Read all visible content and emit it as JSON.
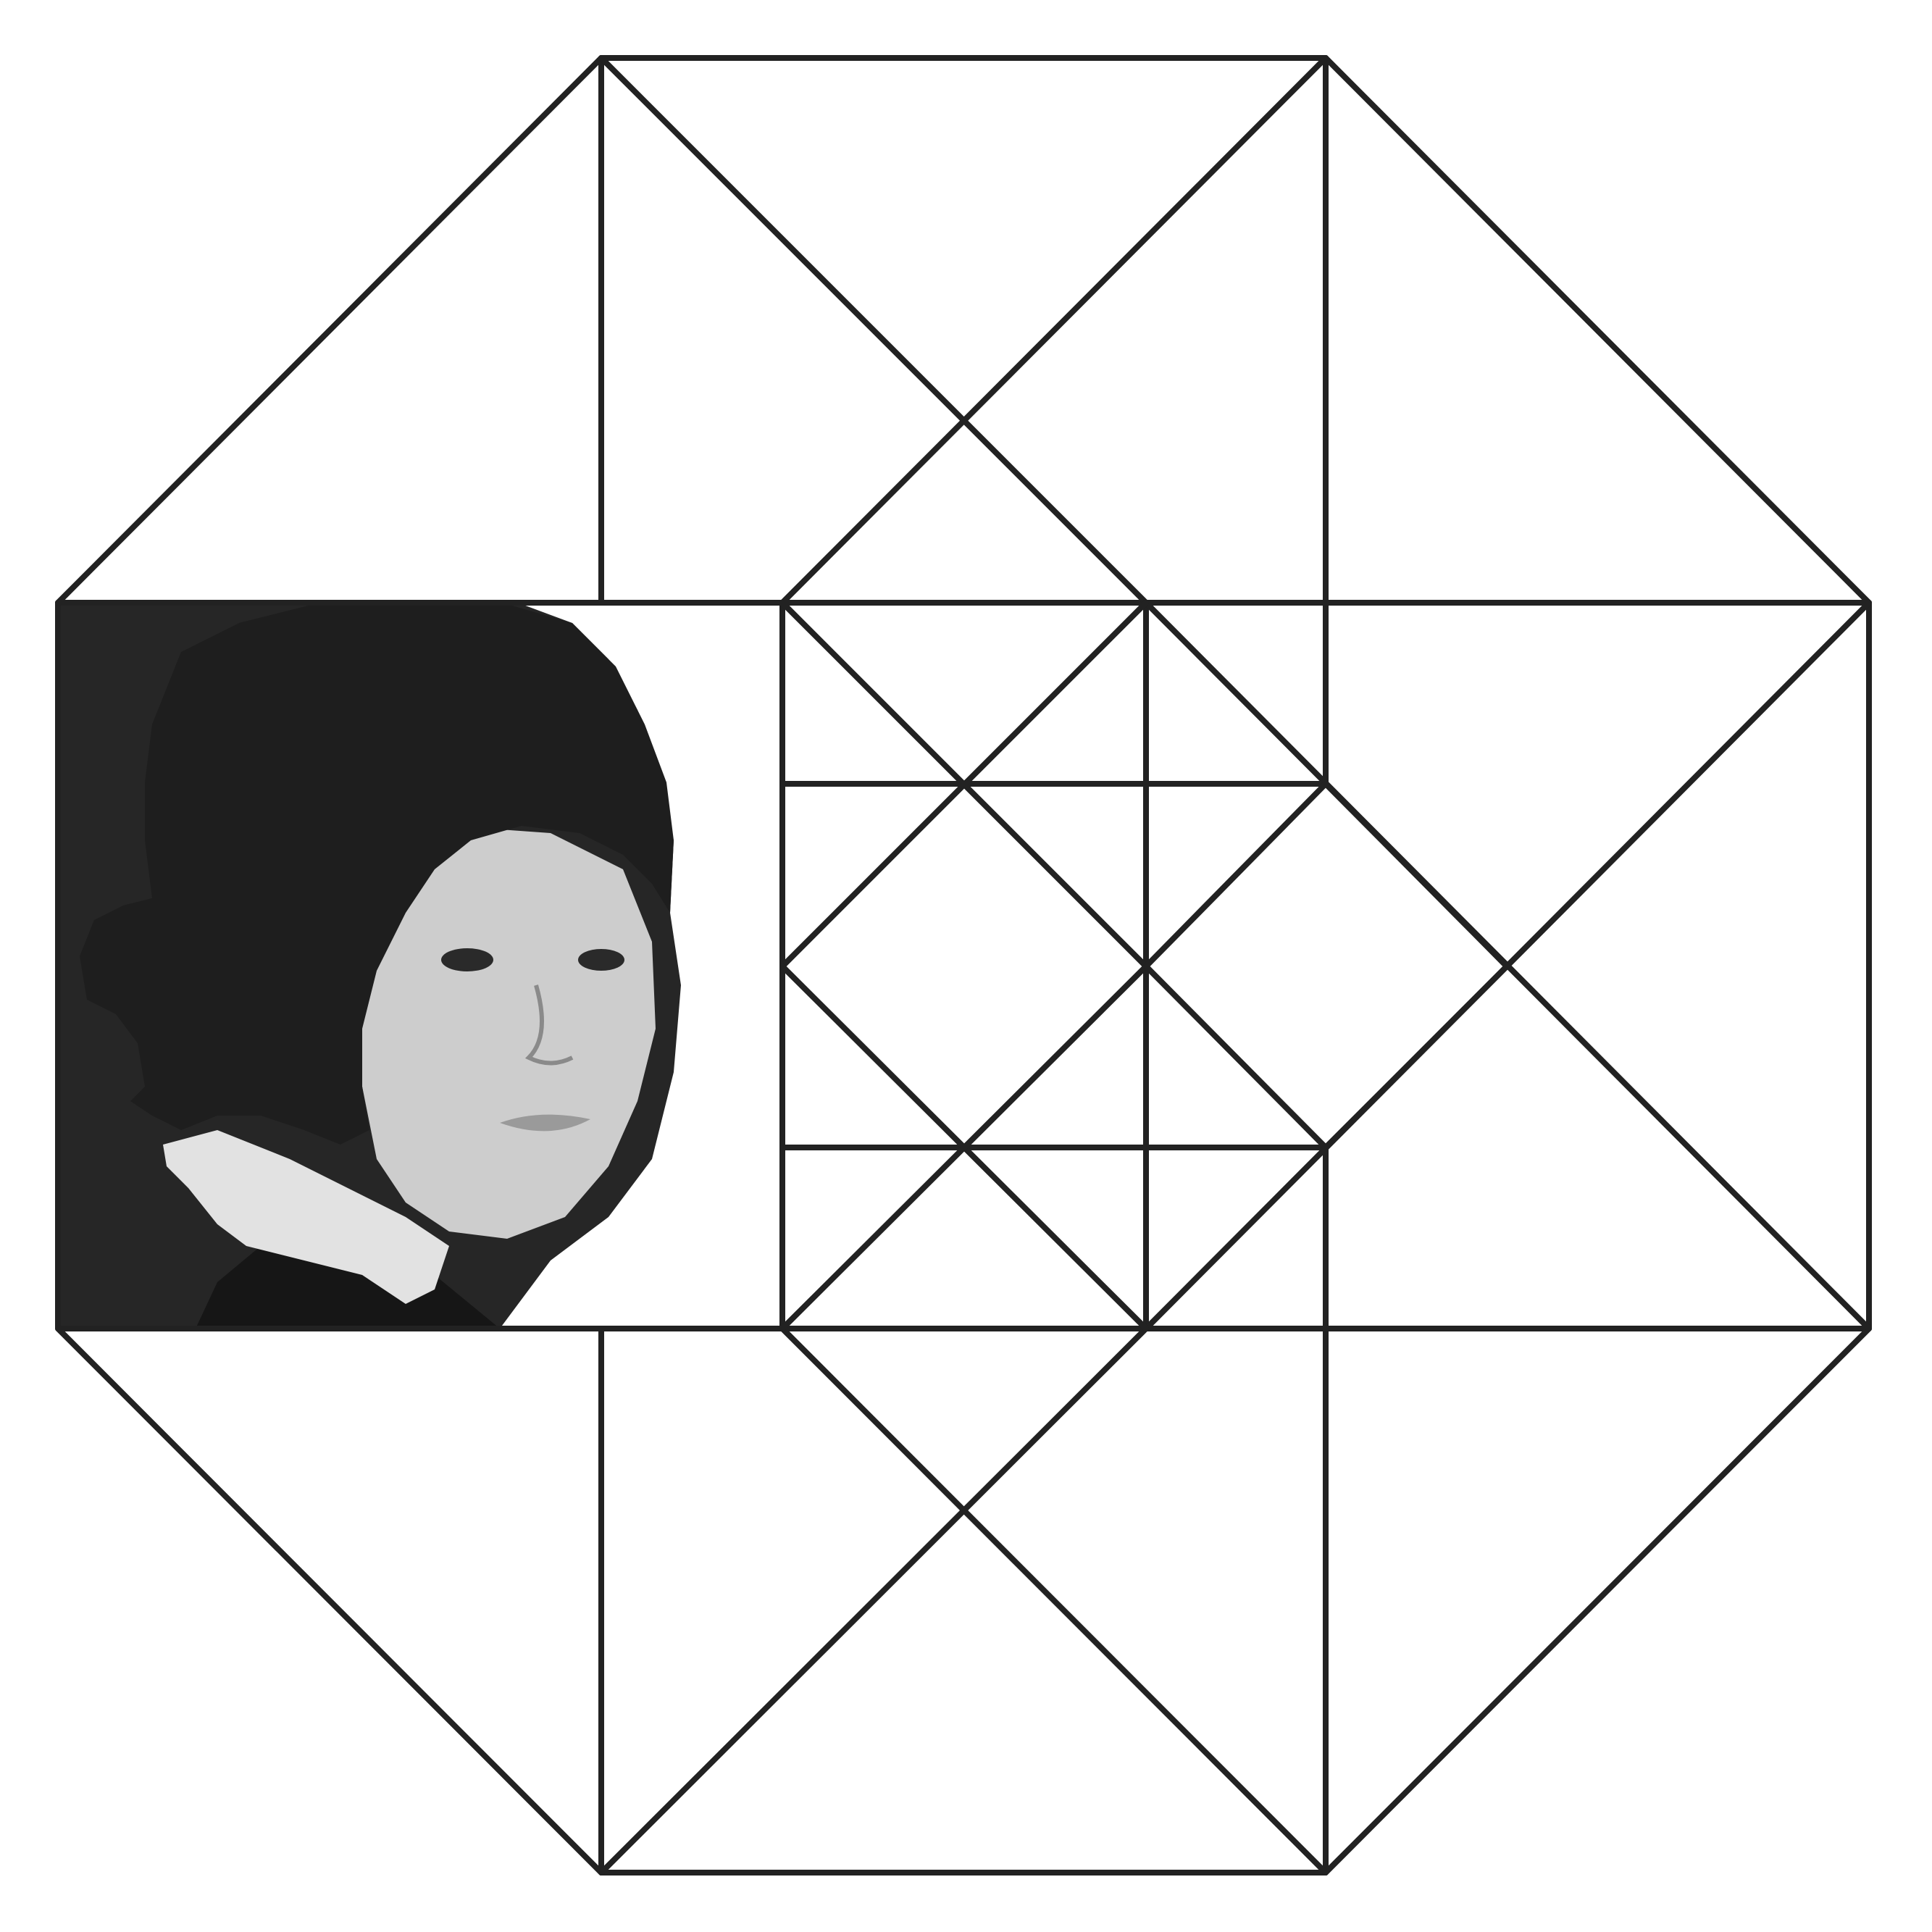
{
  "figure": {
    "background_color": "#ffffff",
    "line_color": "#222222",
    "portrait": {
      "description_visible": false,
      "background_color": "#262626",
      "hair_color": "#1e1e1e",
      "skin_color": "#cfcfcf",
      "collar_color": "#e6e6e6",
      "jacket_color": "#161616"
    }
  }
}
